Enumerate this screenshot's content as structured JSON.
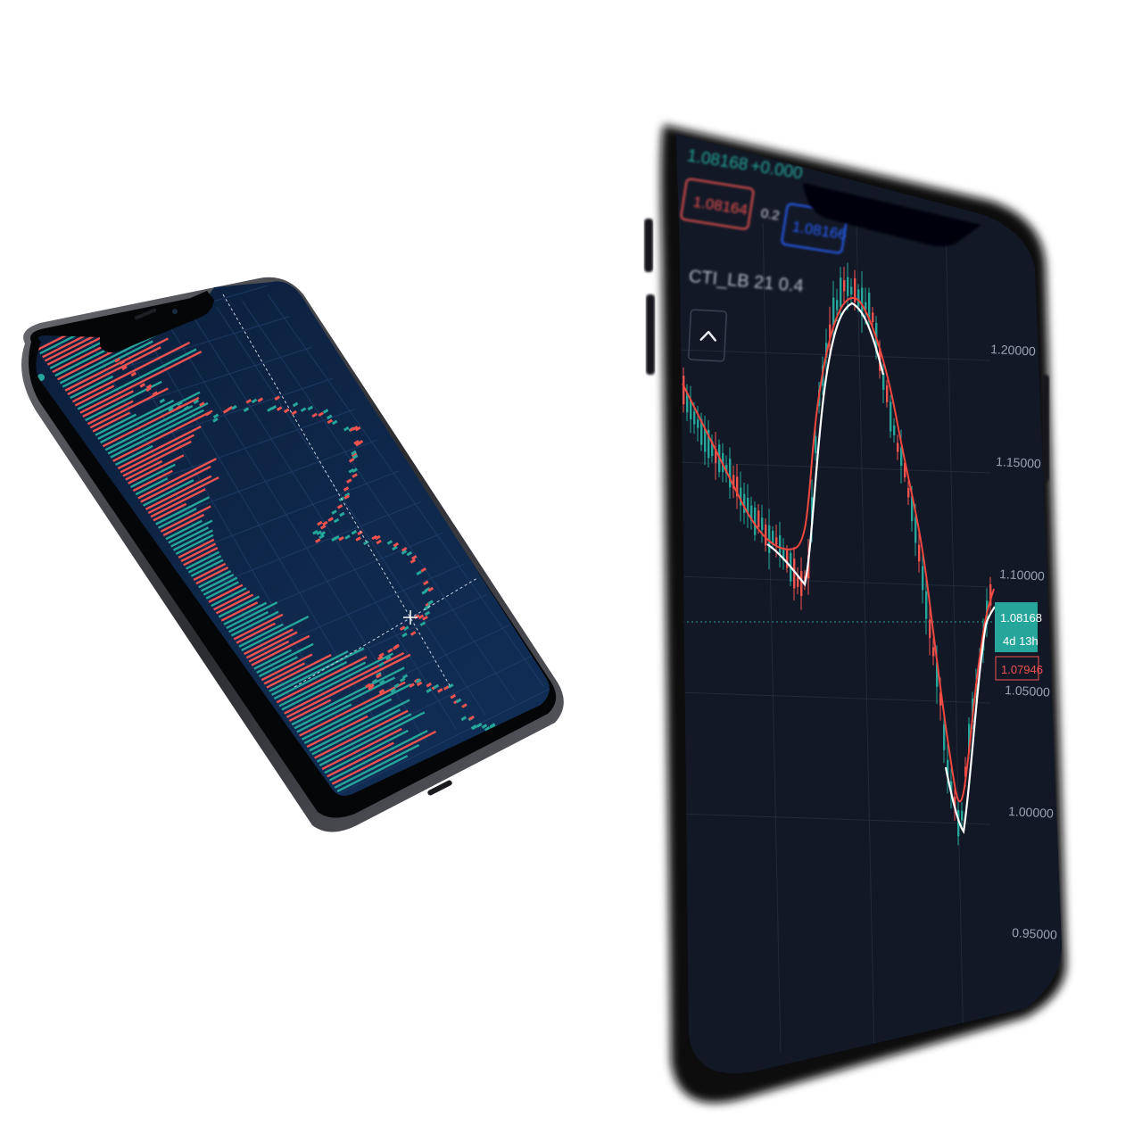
{
  "colors": {
    "bull": "#26a69a",
    "bear": "#ef5350",
    "ma_line": "#f0473f",
    "cti_line": "#ffffff",
    "screen_right": "#121826",
    "screen_left": "#0f2545",
    "phone_body": "#1a1b1f",
    "bid_blue": "#2962ff"
  },
  "icons": {
    "collapse": "chevron-up-icon"
  },
  "right_phone": {
    "top_quote": {
      "price": "1.08168",
      "change": "+0.000"
    },
    "sell_price": "1.08164",
    "spread": "0.2",
    "buy_price": "1.08166",
    "indicator_label": "CTI_LB 21 0.4",
    "price_axis": [
      "1.20000",
      "1.15000",
      "1.10000",
      "1.05000",
      "1.00000",
      "0.95000"
    ],
    "last_price": "1.08168",
    "countdown": "4d 13h",
    "prev_price": "1.07946"
  }
}
